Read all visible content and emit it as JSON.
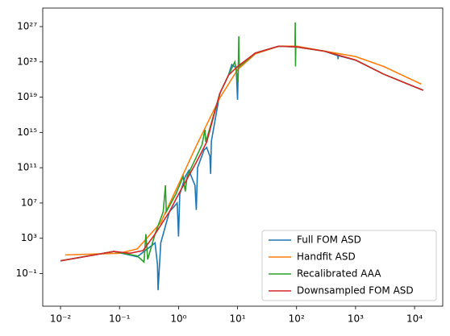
{
  "chart_data": {
    "type": "line",
    "xscale": "log",
    "yscale": "log",
    "grid": false,
    "legend": "lower right",
    "xlim": [
      0.005,
      30000
    ],
    "ylim": [
      2e-05,
      1.26e+29
    ],
    "xticks": [
      {
        "value": 0.01,
        "label": "10⁻²"
      },
      {
        "value": 0.1,
        "label": "10⁻¹"
      },
      {
        "value": 1,
        "label": "10⁰"
      },
      {
        "value": 10,
        "label": "10¹"
      },
      {
        "value": 100,
        "label": "10²"
      },
      {
        "value": 1000,
        "label": "10³"
      },
      {
        "value": 10000,
        "label": "10⁴"
      }
    ],
    "yticks": [
      {
        "value": 0.1,
        "label": "10⁻¹"
      },
      {
        "value": 1000,
        "label": "10³"
      },
      {
        "value": 10000000.0,
        "label": "10⁷"
      },
      {
        "value": 100000000000.0,
        "label": "10¹¹"
      },
      {
        "value": 1000000000000000.0,
        "label": "10¹⁵"
      },
      {
        "value": 1e+19,
        "label": "10¹⁹"
      },
      {
        "value": 1e+23,
        "label": "10²³"
      },
      {
        "value": 1e+27,
        "label": "10²⁷"
      }
    ],
    "series": [
      {
        "name": "Full FOM ASD",
        "color": "#1f77b4",
        "x": [
          0.01,
          0.08,
          0.2,
          0.4,
          0.44,
          0.45,
          0.5,
          0.7,
          0.95,
          1.0,
          1.05,
          1.3,
          1.5,
          1.9,
          2,
          2.1,
          2.7,
          3,
          3.4,
          3.5,
          3.6,
          5,
          7,
          8,
          9.5,
          10,
          10.3,
          20,
          50,
          100,
          300,
          500,
          505,
          510,
          1000,
          3000,
          14000
        ],
        "values": [
          2.8,
          32,
          8,
          300,
          1,
          0.0013,
          300,
          1000000.0,
          10000000.0,
          1600,
          100000000.0,
          10000000000.0,
          50000000000.0,
          1000000000.0,
          1600000.0,
          100000000000.0,
          10000000000000.0,
          20000000000000.0,
          2000000000000.0,
          20000000000.0,
          100000000000000.0,
          2.5e+19,
          3e+21,
          5e+22,
          2e+22,
          5e+18,
          3e+22,
          1e+24,
          6e+24,
          5e+24,
          1.6e+24,
          5e+23,
          2e+23,
          5e+23,
          1.6e+23,
          4e+21,
          6e+19
        ]
      },
      {
        "name": "Handfit ASD",
        "color": "#ff7f0e",
        "x": [
          0.012,
          0.1,
          0.2,
          0.5,
          1,
          2,
          5,
          10,
          20,
          50,
          100,
          1000,
          3000,
          13000
        ],
        "values": [
          13,
          20,
          63,
          60000,
          1300000000.0,
          30000000000000.0,
          8e+18,
          1.3e+22,
          8e+23,
          6e+24,
          6e+24,
          4e+23,
          3e+22,
          3e+20
        ]
      },
      {
        "name": "Recalibrated AAA",
        "color": "#2ca02c",
        "x": [
          0.01,
          0.08,
          0.2,
          0.26,
          0.28,
          0.3,
          0.4,
          0.55,
          0.6,
          0.62,
          0.9,
          1.2,
          1.3,
          1.4,
          2.5,
          2.8,
          2.9,
          5,
          9,
          10.2,
          10.5,
          10.7,
          20,
          50,
          94,
          95,
          96,
          97,
          300,
          1000,
          3000,
          14000
        ],
        "values": [
          2.8,
          32,
          10,
          2,
          3000,
          4,
          3000,
          1000000.0,
          1000000000.0,
          1000000.0,
          100000000.0,
          10000000000.0,
          200000000.0,
          10000000000.0,
          40000000000000.0,
          2000000000000000.0,
          80000000000000.0,
          2.5e+19,
          1e+23,
          5e+20,
          8e+25,
          3e+22,
          1e+24,
          6e+24,
          5e+24,
          3e+27,
          3e+22,
          5e+24,
          1.6e+24,
          1.6e+23,
          4e+21,
          6e+19
        ]
      },
      {
        "name": "Downsampled FOM ASD",
        "color": "#d62728",
        "x": [
          0.01,
          0.03,
          0.08,
          0.15,
          0.25,
          0.4,
          0.7,
          1,
          2,
          3,
          5,
          7,
          10,
          20,
          50,
          100,
          300,
          1000,
          3000,
          14000
        ],
        "values": [
          2.8,
          10,
          32,
          20,
          40,
          3000,
          1000000.0,
          100000000.0,
          400000000000.0,
          80000000000000.0,
          2.5e+19,
          3e+21,
          3e+22,
          1e+24,
          6e+24,
          5e+24,
          1.6e+24,
          1.6e+23,
          4e+21,
          6e+19
        ]
      }
    ]
  }
}
